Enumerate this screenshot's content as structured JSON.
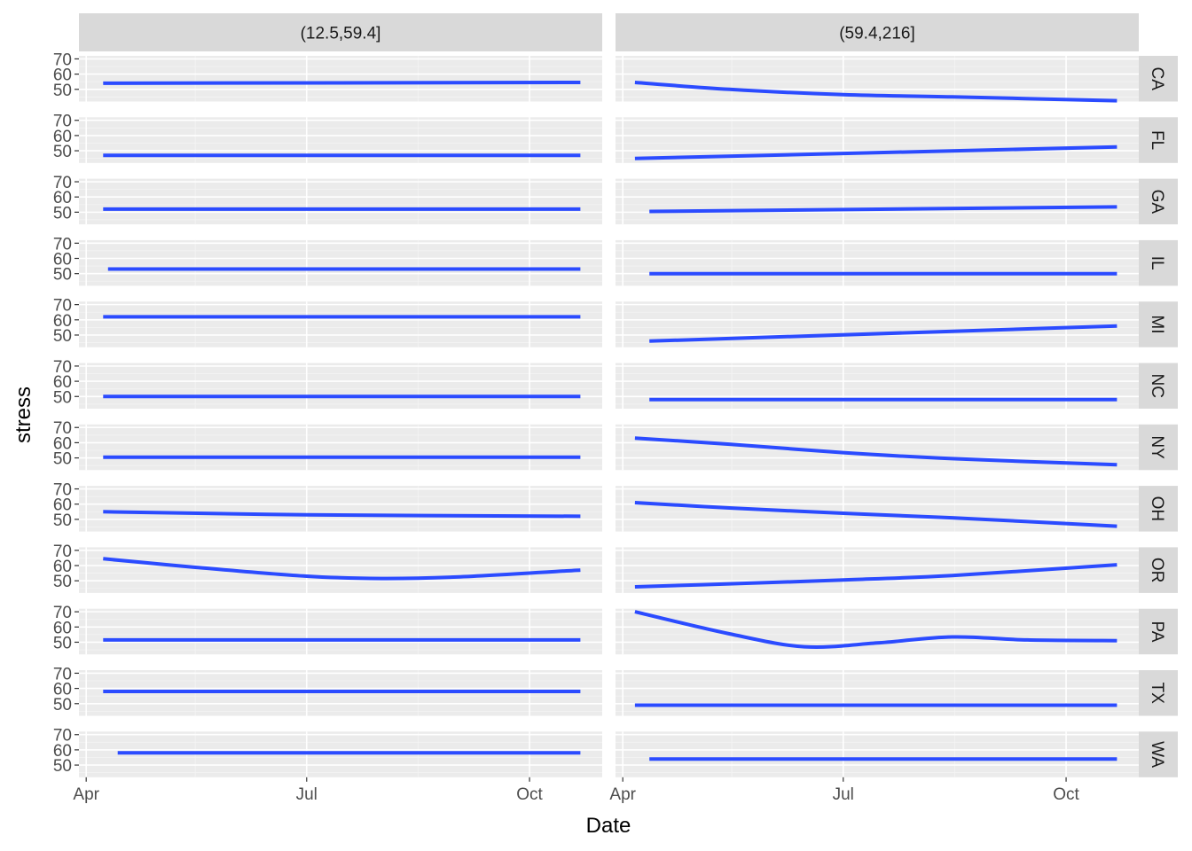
{
  "chart_data": {
    "type": "line",
    "title": "",
    "xlabel": "Date",
    "ylabel": "stress",
    "x_type": "date",
    "xlim": [
      "2020-03-29",
      "2020-10-31"
    ],
    "x_ticks": [
      {
        "date": "2020-04-01",
        "label": "Apr"
      },
      {
        "date": "2020-07-01",
        "label": "Jul"
      },
      {
        "date": "2020-10-01",
        "label": "Oct"
      }
    ],
    "x_minor_ticks": [
      "2020-05-16",
      "2020-08-16"
    ],
    "ylim": [
      42,
      72
    ],
    "y_ticks": [
      50,
      60,
      70
    ],
    "grid": true,
    "line_color": "#2b4bff",
    "col_facets": [
      "(12.5,59.4]",
      "(59.4,216]"
    ],
    "row_facets": [
      "CA",
      "FL",
      "GA",
      "IL",
      "MI",
      "NC",
      "NY",
      "OH",
      "OR",
      "PA",
      "TX",
      "WA"
    ],
    "panels": [
      {
        "col": 0,
        "row": 0,
        "x": [
          "2020-04-08",
          "2020-10-22"
        ],
        "y": [
          54,
          54.5
        ]
      },
      {
        "col": 1,
        "row": 0,
        "x": [
          "2020-04-06",
          "2020-05-15",
          "2020-07-01",
          "2020-08-15",
          "2020-10-22"
        ],
        "y": [
          54.5,
          50,
          46.5,
          45,
          42.5
        ]
      },
      {
        "col": 0,
        "row": 1,
        "x": [
          "2020-04-08",
          "2020-10-22"
        ],
        "y": [
          47,
          47
        ]
      },
      {
        "col": 1,
        "row": 1,
        "x": [
          "2020-04-06",
          "2020-10-22"
        ],
        "y": [
          45,
          52.5
        ]
      },
      {
        "col": 0,
        "row": 2,
        "x": [
          "2020-04-08",
          "2020-10-22"
        ],
        "y": [
          52,
          52
        ]
      },
      {
        "col": 1,
        "row": 2,
        "x": [
          "2020-04-12",
          "2020-10-22"
        ],
        "y": [
          50.5,
          53.5
        ]
      },
      {
        "col": 0,
        "row": 3,
        "x": [
          "2020-04-10",
          "2020-10-22"
        ],
        "y": [
          53,
          53
        ]
      },
      {
        "col": 1,
        "row": 3,
        "x": [
          "2020-04-12",
          "2020-10-22"
        ],
        "y": [
          50,
          50
        ]
      },
      {
        "col": 0,
        "row": 4,
        "x": [
          "2020-04-08",
          "2020-10-22"
        ],
        "y": [
          62,
          62
        ]
      },
      {
        "col": 1,
        "row": 4,
        "x": [
          "2020-04-12",
          "2020-10-22"
        ],
        "y": [
          46,
          56
        ]
      },
      {
        "col": 0,
        "row": 5,
        "x": [
          "2020-04-08",
          "2020-10-22"
        ],
        "y": [
          50,
          50
        ]
      },
      {
        "col": 1,
        "row": 5,
        "x": [
          "2020-04-12",
          "2020-10-22"
        ],
        "y": [
          48,
          48
        ]
      },
      {
        "col": 0,
        "row": 6,
        "x": [
          "2020-04-08",
          "2020-10-22"
        ],
        "y": [
          50.5,
          50.5
        ]
      },
      {
        "col": 1,
        "row": 6,
        "x": [
          "2020-04-06",
          "2020-05-15",
          "2020-07-01",
          "2020-08-15",
          "2020-10-22"
        ],
        "y": [
          63,
          59,
          53.5,
          49.5,
          45.5
        ]
      },
      {
        "col": 0,
        "row": 7,
        "x": [
          "2020-04-08",
          "2020-07-01",
          "2020-10-22"
        ],
        "y": [
          55,
          53,
          52
        ]
      },
      {
        "col": 1,
        "row": 7,
        "x": [
          "2020-04-06",
          "2020-05-15",
          "2020-07-01",
          "2020-08-15",
          "2020-10-22"
        ],
        "y": [
          61,
          57.5,
          54,
          51,
          45.5
        ]
      },
      {
        "col": 0,
        "row": 8,
        "x": [
          "2020-04-08",
          "2020-05-15",
          "2020-07-01",
          "2020-08-01",
          "2020-09-01",
          "2020-10-22"
        ],
        "y": [
          64.5,
          59,
          53,
          51.5,
          52.5,
          57
        ]
      },
      {
        "col": 1,
        "row": 8,
        "x": [
          "2020-04-06",
          "2020-05-15",
          "2020-07-01",
          "2020-08-15",
          "2020-10-22"
        ],
        "y": [
          46,
          48,
          50.5,
          53.5,
          60.5
        ]
      },
      {
        "col": 0,
        "row": 9,
        "x": [
          "2020-04-08",
          "2020-10-22"
        ],
        "y": [
          51.5,
          51.5
        ]
      },
      {
        "col": 1,
        "row": 9,
        "x": [
          "2020-04-06",
          "2020-05-15",
          "2020-06-15",
          "2020-07-15",
          "2020-08-15",
          "2020-09-15",
          "2020-10-22"
        ],
        "y": [
          70,
          55.5,
          47,
          49.5,
          53.5,
          51.5,
          51
        ]
      },
      {
        "col": 0,
        "row": 10,
        "x": [
          "2020-04-08",
          "2020-10-22"
        ],
        "y": [
          58,
          58
        ]
      },
      {
        "col": 1,
        "row": 10,
        "x": [
          "2020-04-06",
          "2020-10-22"
        ],
        "y": [
          49,
          49
        ]
      },
      {
        "col": 0,
        "row": 11,
        "x": [
          "2020-04-14",
          "2020-10-22"
        ],
        "y": [
          58,
          58
        ]
      },
      {
        "col": 1,
        "row": 11,
        "x": [
          "2020-04-12",
          "2020-10-22"
        ],
        "y": [
          54,
          54
        ]
      }
    ]
  }
}
